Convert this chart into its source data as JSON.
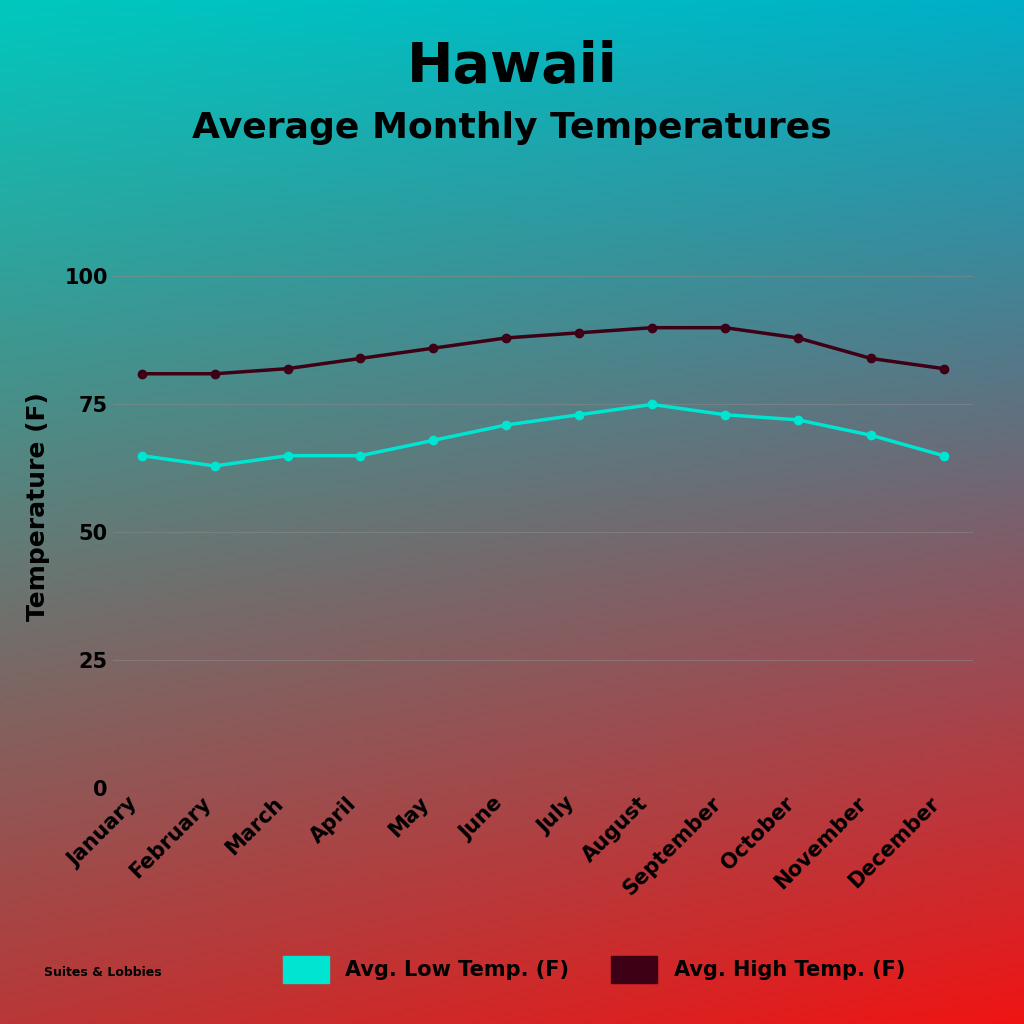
{
  "title": "Hawaii",
  "subtitle": "Average Monthly Temperatures",
  "ylabel": "Temperature (F)",
  "months": [
    "January",
    "February",
    "March",
    "April",
    "May",
    "June",
    "July",
    "August",
    "September",
    "October",
    "November",
    "December"
  ],
  "low_temps": [
    65,
    63,
    65,
    65,
    68,
    71,
    73,
    75,
    73,
    72,
    69,
    65
  ],
  "high_temps": [
    81,
    81,
    82,
    84,
    86,
    88,
    89,
    90,
    90,
    88,
    84,
    82
  ],
  "low_color": "#00E5D1",
  "high_color": "#3D0015",
  "ylim": [
    0,
    110
  ],
  "yticks": [
    0,
    25,
    50,
    75,
    100
  ],
  "tl_color": [
    0,
    200,
    190
  ],
  "tr_color": [
    0,
    175,
    200
  ],
  "bl_color": [
    185,
    55,
    55
  ],
  "br_color": [
    240,
    20,
    20
  ],
  "grid_color": "#888888",
  "text_color": "#000000",
  "legend_low_label": "Avg. Low Temp. (F)",
  "legend_high_label": "Avg. High Temp. (F)",
  "title_fontsize": 40,
  "subtitle_fontsize": 26,
  "axis_label_fontsize": 18,
  "tick_fontsize": 15,
  "legend_fontsize": 15,
  "line_width": 2.5,
  "marker_size": 6
}
